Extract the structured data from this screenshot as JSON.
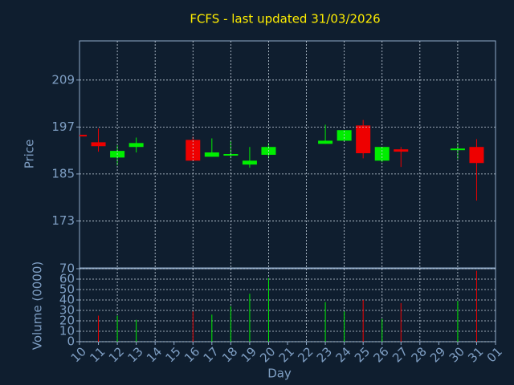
{
  "chart_data": [
    {
      "type": "candlestick",
      "title": "FCFS - last updated 31/03/2026",
      "ylabel": "Price",
      "categories": [
        "10",
        "11",
        "12",
        "13",
        "14",
        "15",
        "16",
        "17",
        "18",
        "19",
        "20",
        "21",
        "22",
        "23",
        "24",
        "25",
        "26",
        "27",
        "28",
        "29",
        "30",
        "31",
        "01"
      ],
      "open": [
        195,
        193.1,
        189.2,
        191.9,
        null,
        null,
        193.7,
        189.4,
        189.7,
        187.4,
        189.9,
        null,
        null,
        192.7,
        193.5,
        197.4,
        188.4,
        191.3,
        null,
        null,
        191.1,
        191.9,
        null
      ],
      "high": [
        195,
        196.6,
        192.3,
        194.3,
        null,
        null,
        194.5,
        194.1,
        193.5,
        191.9,
        192.9,
        null,
        null,
        197.6,
        196.2,
        198.8,
        191.9,
        191.9,
        null,
        null,
        192.9,
        193.9,
        null
      ],
      "low": [
        194.6,
        190.7,
        187.2,
        190.5,
        null,
        null,
        188.4,
        189.4,
        189.0,
        186.6,
        189.0,
        null,
        null,
        192.7,
        193.5,
        189.0,
        188.0,
        186.8,
        null,
        null,
        188.8,
        178.2,
        null
      ],
      "close": [
        194.6,
        192.1,
        190.9,
        192.9,
        null,
        null,
        188.4,
        190.5,
        190.1,
        188.4,
        191.9,
        null,
        null,
        193.5,
        196.2,
        190.3,
        191.9,
        190.7,
        null,
        null,
        191.5,
        187.8,
        null
      ],
      "ylim": [
        161,
        219
      ],
      "yticks": [
        173,
        185,
        197,
        209
      ],
      "grid": true,
      "up_color": "#00ee00",
      "down_color": "#ee0000"
    },
    {
      "type": "bar",
      "ylabel": "Volume (0000)",
      "xlabel": "Day",
      "values": [
        null,
        25,
        25,
        21,
        null,
        null,
        29,
        26,
        34,
        46,
        61,
        null,
        null,
        38,
        29,
        40,
        22,
        37,
        null,
        null,
        39,
        68,
        null
      ],
      "ylim": [
        0,
        70
      ],
      "yticks": [
        0,
        10,
        20,
        30,
        40,
        50,
        60,
        70
      ],
      "grid": true
    }
  ]
}
